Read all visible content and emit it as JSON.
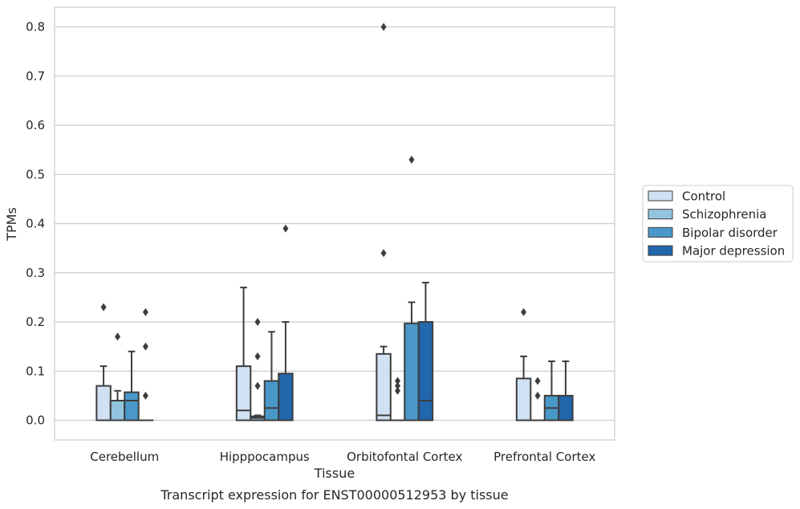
{
  "chart_data": {
    "type": "box",
    "title": "Transcript expression for ENST00000512953 by tissue",
    "xlabel": "Tissue",
    "ylabel": "TPMs",
    "ylim": [
      -0.04,
      0.84
    ],
    "yticks": [
      0.0,
      0.1,
      0.2,
      0.3,
      0.4,
      0.5,
      0.6,
      0.7,
      0.8
    ],
    "ytick_labels": [
      "0.0",
      "0.1",
      "0.2",
      "0.3",
      "0.4",
      "0.5",
      "0.6",
      "0.7",
      "0.8"
    ],
    "grid": true,
    "legend_position": "right",
    "categories": [
      "Cerebellum",
      "Hipppocampus",
      "Orbitofontal Cortex",
      "Prefrontal Cortex"
    ],
    "series": [
      {
        "name": "Control",
        "color": "#cfe1f2",
        "boxes": [
          {
            "q1": 0.0,
            "median": 0.0,
            "q3": 0.07,
            "whisker_low": 0.0,
            "whisker_high": 0.11,
            "outliers": [
              0.23
            ]
          },
          {
            "q1": 0.0,
            "median": 0.02,
            "q3": 0.11,
            "whisker_low": 0.0,
            "whisker_high": 0.27,
            "outliers": []
          },
          {
            "q1": 0.0,
            "median": 0.01,
            "q3": 0.135,
            "whisker_low": 0.0,
            "whisker_high": 0.15,
            "outliers": [
              0.34,
              0.8
            ]
          },
          {
            "q1": 0.0,
            "median": 0.0,
            "q3": 0.085,
            "whisker_low": 0.0,
            "whisker_high": 0.13,
            "outliers": [
              0.22
            ]
          }
        ]
      },
      {
        "name": "Schizophrenia",
        "color": "#93c4de",
        "boxes": [
          {
            "q1": 0.0,
            "median": 0.0,
            "q3": 0.04,
            "whisker_low": 0.0,
            "whisker_high": 0.06,
            "outliers": [
              0.17
            ]
          },
          {
            "q1": 0.0,
            "median": 0.005,
            "q3": 0.008,
            "whisker_low": 0.0,
            "whisker_high": 0.01,
            "outliers": [
              0.07,
              0.13,
              0.2
            ]
          },
          {
            "q1": 0.0,
            "median": 0.0,
            "q3": 0.0,
            "whisker_low": 0.0,
            "whisker_high": 0.0,
            "outliers": [
              0.06,
              0.07,
              0.08
            ]
          },
          {
            "q1": 0.0,
            "median": 0.0,
            "q3": 0.0,
            "whisker_low": 0.0,
            "whisker_high": 0.0,
            "outliers": [
              0.05,
              0.08
            ]
          }
        ]
      },
      {
        "name": "Bipolar disorder",
        "color": "#4a98c9",
        "boxes": [
          {
            "q1": 0.0,
            "median": 0.04,
            "q3": 0.057,
            "whisker_low": 0.0,
            "whisker_high": 0.14,
            "outliers": []
          },
          {
            "q1": 0.0,
            "median": 0.025,
            "q3": 0.08,
            "whisker_low": 0.0,
            "whisker_high": 0.18,
            "outliers": []
          },
          {
            "q1": 0.0,
            "median": 0.0,
            "q3": 0.197,
            "whisker_low": 0.0,
            "whisker_high": 0.24,
            "outliers": [
              0.53
            ]
          },
          {
            "q1": 0.0,
            "median": 0.025,
            "q3": 0.05,
            "whisker_low": 0.0,
            "whisker_high": 0.12,
            "outliers": []
          }
        ]
      },
      {
        "name": "Major depression",
        "color": "#2266ac",
        "boxes": [
          {
            "q1": 0.0,
            "median": 0.0,
            "q3": 0.0,
            "whisker_low": 0.0,
            "whisker_high": 0.0,
            "outliers": [
              0.05,
              0.15,
              0.22
            ]
          },
          {
            "q1": 0.0,
            "median": 0.0,
            "q3": 0.095,
            "whisker_low": 0.0,
            "whisker_high": 0.2,
            "outliers": [
              0.39
            ]
          },
          {
            "q1": 0.0,
            "median": 0.04,
            "q3": 0.2,
            "whisker_low": 0.0,
            "whisker_high": 0.28,
            "outliers": []
          },
          {
            "q1": 0.0,
            "median": 0.0,
            "q3": 0.05,
            "whisker_low": 0.0,
            "whisker_high": 0.12,
            "outliers": []
          }
        ]
      }
    ]
  }
}
